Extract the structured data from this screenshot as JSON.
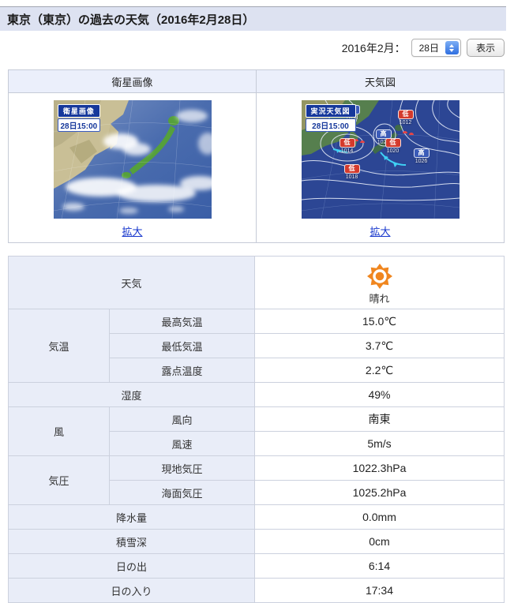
{
  "colors": {
    "label_bg": "#e9edf8",
    "titlebar_bg": "#dde2f1",
    "max_temp": "#e0472e",
    "min_temp": "#2a66c8",
    "link": "#1535cc",
    "sun": "#f0861f"
  },
  "header": {
    "title": "東京（東京）の過去の天気（2016年2月28日）"
  },
  "controls": {
    "month_label": "2016年2月：",
    "day_value": "28日",
    "show_button": "表示"
  },
  "image_panels": {
    "satellite": {
      "column_header": "衛星画像",
      "badge_title": "衛星画像",
      "badge_time": "28日15:00",
      "zoom_link": "拡大"
    },
    "weather_map": {
      "column_header": "天気図",
      "badge_title": "実況天気図",
      "badge_time": "28日15:00",
      "zoom_link": "拡大",
      "markers": [
        {
          "type": "高",
          "pressure": "1038",
          "x": 32,
          "y": 9
        },
        {
          "type": "低",
          "pressure": "1012",
          "x": 66,
          "y": 13
        },
        {
          "type": "高",
          "pressure": "1028",
          "x": 52,
          "y": 30
        },
        {
          "type": "低",
          "pressure": "1014",
          "x": 29,
          "y": 37
        },
        {
          "type": "低",
          "pressure": "1020",
          "x": 58,
          "y": 37
        },
        {
          "type": "高",
          "pressure": "1026",
          "x": 76,
          "y": 46
        },
        {
          "type": "低",
          "pressure": "1018",
          "x": 32,
          "y": 59
        }
      ]
    }
  },
  "weather_table": {
    "weather": {
      "label": "天気",
      "condition": "晴れ"
    },
    "temperature": {
      "group": "気温",
      "max": {
        "label": "最高気温",
        "value": "15.0℃"
      },
      "min": {
        "label": "最低気温",
        "value": "3.7℃"
      },
      "dew_point": {
        "label": "露点温度",
        "value": "2.2℃"
      }
    },
    "humidity": {
      "label": "湿度",
      "value": "49%"
    },
    "wind": {
      "group": "風",
      "direction": {
        "label": "風向",
        "value": "南東"
      },
      "speed": {
        "label": "風速",
        "value": "5m/s"
      }
    },
    "pressure": {
      "group": "気圧",
      "station": {
        "label": "現地気圧",
        "value": "1022.3hPa"
      },
      "sea_level": {
        "label": "海面気圧",
        "value": "1025.2hPa"
      }
    },
    "precipitation": {
      "label": "降水量",
      "value": "0.0mm"
    },
    "snow_depth": {
      "label": "積雪深",
      "value": "0cm"
    },
    "sunrise": {
      "label": "日の出",
      "value": "6:14"
    },
    "sunset": {
      "label": "日の入り",
      "value": "17:34"
    }
  }
}
